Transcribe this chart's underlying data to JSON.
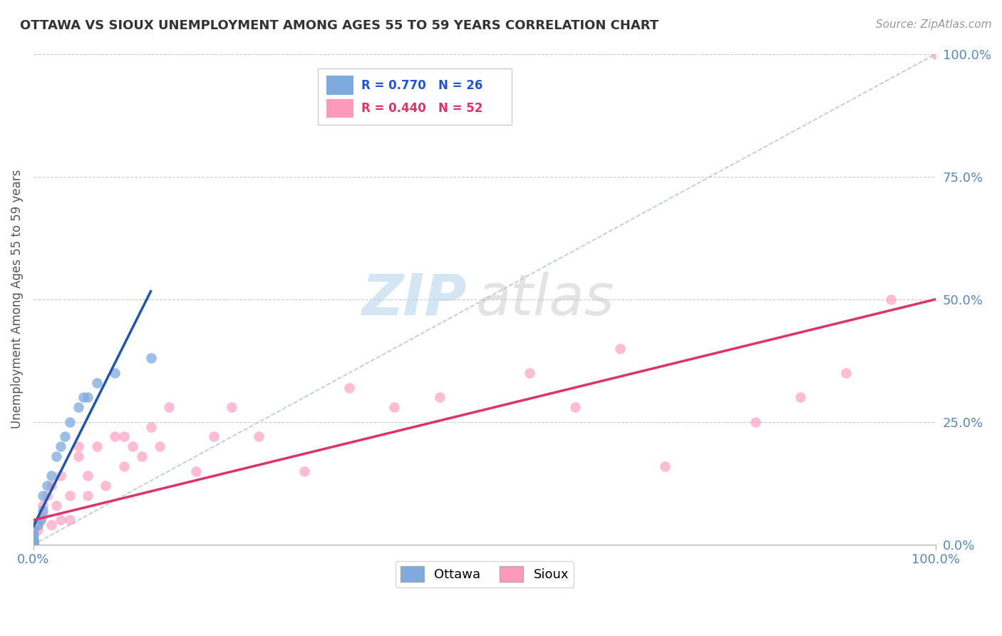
{
  "title": "OTTAWA VS SIOUX UNEMPLOYMENT AMONG AGES 55 TO 59 YEARS CORRELATION CHART",
  "source_text": "Source: ZipAtlas.com",
  "ylabel": "Unemployment Among Ages 55 to 59 years",
  "xlim": [
    0,
    1
  ],
  "ylim": [
    0,
    1
  ],
  "xtick_labels": [
    "0.0%",
    "100.0%"
  ],
  "ytick_labels": [
    "0.0%",
    "25.0%",
    "50.0%",
    "75.0%",
    "100.0%"
  ],
  "ytick_positions": [
    0,
    0.25,
    0.5,
    0.75,
    1.0
  ],
  "ottawa_color": "#7eaadd",
  "sioux_color": "#ff99bb",
  "ottawa_line_color": "#2255aa",
  "sioux_line_color": "#dd3366",
  "watermark_zip": "ZIP",
  "watermark_atlas": "atlas",
  "background_color": "#ffffff",
  "grid_color": "#cccccc",
  "legend_r1": "R = 0.770",
  "legend_n1": "N = 26",
  "legend_r2": "R = 0.440",
  "legend_n2": "N = 52",
  "ottawa_x": [
    0.0,
    0.0,
    0.0,
    0.0,
    0.0,
    0.0,
    0.0,
    0.0,
    0.0,
    0.0,
    0.005,
    0.008,
    0.01,
    0.01,
    0.015,
    0.02,
    0.025,
    0.03,
    0.035,
    0.04,
    0.05,
    0.055,
    0.06,
    0.07,
    0.09,
    0.13
  ],
  "ottawa_y": [
    0.0,
    0.0,
    0.0,
    0.0,
    0.0,
    0.005,
    0.008,
    0.01,
    0.02,
    0.03,
    0.04,
    0.05,
    0.07,
    0.1,
    0.12,
    0.14,
    0.18,
    0.2,
    0.22,
    0.25,
    0.28,
    0.3,
    0.3,
    0.33,
    0.35,
    0.38
  ],
  "sioux_x": [
    0.0,
    0.0,
    0.0,
    0.0,
    0.0,
    0.0,
    0.0,
    0.0,
    0.005,
    0.005,
    0.008,
    0.01,
    0.01,
    0.015,
    0.02,
    0.02,
    0.025,
    0.03,
    0.03,
    0.04,
    0.04,
    0.05,
    0.05,
    0.06,
    0.06,
    0.07,
    0.08,
    0.09,
    0.1,
    0.1,
    0.11,
    0.12,
    0.13,
    0.14,
    0.15,
    0.18,
    0.2,
    0.22,
    0.25,
    0.3,
    0.35,
    0.4,
    0.45,
    0.55,
    0.6,
    0.65,
    0.7,
    0.8,
    0.85,
    0.9,
    0.95,
    1.0
  ],
  "sioux_y": [
    0.0,
    0.0,
    0.0,
    0.0,
    0.0,
    0.0,
    0.01,
    0.02,
    0.03,
    0.04,
    0.05,
    0.06,
    0.08,
    0.1,
    0.12,
    0.04,
    0.08,
    0.14,
    0.05,
    0.1,
    0.05,
    0.18,
    0.2,
    0.1,
    0.14,
    0.2,
    0.12,
    0.22,
    0.16,
    0.22,
    0.2,
    0.18,
    0.24,
    0.2,
    0.28,
    0.15,
    0.22,
    0.28,
    0.22,
    0.15,
    0.32,
    0.28,
    0.3,
    0.35,
    0.28,
    0.4,
    0.16,
    0.25,
    0.3,
    0.35,
    0.5,
    1.0
  ]
}
